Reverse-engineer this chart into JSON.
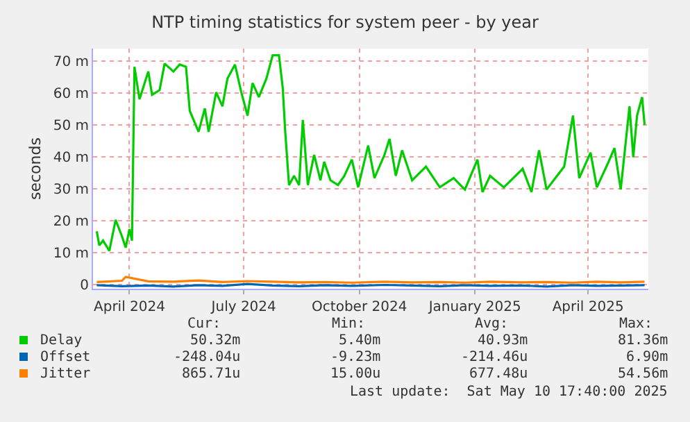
{
  "chart_data": {
    "type": "line",
    "title": "NTP timing statistics for system peer - by year",
    "ylabel": "seconds",
    "xlim": [
      "2024-03-03",
      "2025-05-19"
    ],
    "xticks": [
      {
        "value": "2024-04-01",
        "label": "April 2024"
      },
      {
        "value": "2024-07-01",
        "label": "July 2024"
      },
      {
        "value": "2024-10-01",
        "label": "October 2024"
      },
      {
        "value": "2025-01-01",
        "label": "January 2025"
      },
      {
        "value": "2025-04-01",
        "label": "April 2025"
      }
    ],
    "ylim": [
      -1.3,
      74
    ],
    "yticks": [
      0,
      {
        "value": 10,
        "label": "10 m"
      },
      {
        "value": 20,
        "label": "20 m"
      },
      {
        "value": 30,
        "label": "30 m"
      },
      {
        "value": 40,
        "label": "40 m"
      },
      {
        "value": 50,
        "label": "50 m"
      },
      {
        "value": 60,
        "label": "60 m"
      },
      {
        "value": 70,
        "label": "70 m"
      }
    ],
    "grid": true,
    "legend": "bottom",
    "marker": "none",
    "line_style": "solid",
    "series": [
      {
        "name": "Delay",
        "color": "#00cc00",
        "x": [
          "2024-03-06",
          "2024-03-08",
          "2024-03-11",
          "2024-03-16",
          "2024-03-21",
          "2024-03-26",
          "2024-03-29",
          "2024-04-01",
          "2024-04-03",
          "2024-04-05",
          "2024-04-09",
          "2024-04-16",
          "2024-04-19",
          "2024-04-25",
          "2024-04-29",
          "2024-05-06",
          "2024-05-11",
          "2024-05-16",
          "2024-05-19",
          "2024-05-26",
          "2024-05-31",
          "2024-06-03",
          "2024-06-09",
          "2024-06-14",
          "2024-06-18",
          "2024-06-24",
          "2024-06-29",
          "2024-07-04",
          "2024-07-08",
          "2024-07-13",
          "2024-07-19",
          "2024-07-24",
          "2024-07-29",
          "2024-08-01",
          "2024-08-03",
          "2024-08-06",
          "2024-08-10",
          "2024-08-14",
          "2024-08-17",
          "2024-08-21",
          "2024-08-26",
          "2024-08-31",
          "2024-09-03",
          "2024-09-08",
          "2024-09-14",
          "2024-09-19",
          "2024-09-25",
          "2024-09-30",
          "2024-10-08",
          "2024-10-13",
          "2024-10-21",
          "2024-10-25",
          "2024-10-30",
          "2024-11-04",
          "2024-11-12",
          "2024-11-23",
          "2024-12-04",
          "2024-12-15",
          "2024-12-24",
          "2025-01-03",
          "2025-01-07",
          "2025-01-13",
          "2025-01-24",
          "2025-02-08",
          "2025-02-15",
          "2025-02-21",
          "2025-02-27",
          "2025-03-06",
          "2025-03-13",
          "2025-03-20",
          "2025-03-25",
          "2025-04-03",
          "2025-04-08",
          "2025-04-17",
          "2025-04-22",
          "2025-04-27",
          "2025-05-04",
          "2025-05-07",
          "2025-05-10",
          "2025-05-14",
          "2025-05-16"
        ],
        "values": [
          16.7,
          12.3,
          13.8,
          10.6,
          20.3,
          15.2,
          11.6,
          17.4,
          13.8,
          68.3,
          58.1,
          66.8,
          59.5,
          61,
          69.3,
          66.8,
          69,
          68.3,
          54.5,
          47.9,
          55.2,
          47.9,
          60.3,
          55.9,
          64.6,
          69,
          60.3,
          53,
          63.2,
          58.8,
          64.6,
          71.9,
          71.9,
          61.7,
          47.9,
          31.2,
          34.1,
          31.2,
          51.6,
          31.2,
          40.7,
          32.7,
          38.5,
          32.7,
          31.2,
          34.1,
          39.2,
          30.5,
          43.6,
          33.4,
          40.7,
          45.7,
          34.1,
          42.1,
          32.7,
          37,
          30.5,
          33.4,
          29.8,
          39.2,
          29,
          34.1,
          30.5,
          36.3,
          29,
          42.1,
          29.8,
          33.4,
          37,
          53,
          33.4,
          41.4,
          30.5,
          38.2,
          42.8,
          29.8,
          55.9,
          39.9,
          53,
          58.8,
          50.1
        ]
      },
      {
        "name": "Offset",
        "color": "#0066b3",
        "x": [
          "2024-03-06",
          "2024-03-26",
          "2024-04-16",
          "2024-05-06",
          "2024-05-26",
          "2024-06-14",
          "2024-07-04",
          "2024-07-24",
          "2024-08-14",
          "2024-09-03",
          "2024-09-25",
          "2024-10-21",
          "2024-11-12",
          "2024-12-04",
          "2024-12-24",
          "2025-01-13",
          "2025-02-08",
          "2025-02-27",
          "2025-03-20",
          "2025-04-08",
          "2025-04-27",
          "2025-05-16"
        ],
        "values": [
          -0.2,
          -0.5,
          -0.3,
          -0.6,
          -0.2,
          -0.4,
          0.2,
          -0.3,
          -0.5,
          -0.2,
          -0.4,
          -0.1,
          -0.3,
          -0.5,
          -0.2,
          -0.4,
          -0.3,
          -0.6,
          -0.2,
          -0.4,
          -0.3,
          -0.2
        ]
      },
      {
        "name": "Jitter",
        "color": "#ff8000",
        "x": [
          "2024-03-06",
          "2024-03-26",
          "2024-03-29",
          "2024-04-16",
          "2024-05-06",
          "2024-05-26",
          "2024-06-14",
          "2024-07-04",
          "2024-07-24",
          "2024-08-14",
          "2024-09-03",
          "2024-09-25",
          "2024-10-21",
          "2024-11-12",
          "2024-12-04",
          "2024-12-24",
          "2025-01-13",
          "2025-02-08",
          "2025-02-27",
          "2025-03-20",
          "2025-04-08",
          "2025-04-27",
          "2025-05-16"
        ],
        "values": [
          0.8,
          1.2,
          2.4,
          1,
          0.9,
          1.3,
          0.8,
          1.1,
          0.9,
          0.7,
          0.8,
          0.6,
          0.9,
          0.7,
          0.8,
          0.6,
          0.9,
          0.7,
          0.8,
          0.6,
          0.9,
          0.7,
          0.9
        ]
      }
    ],
    "annotations": [
      "Cur:",
      "Min:",
      "Avg:",
      "Max:",
      "50.32m",
      "5.40m",
      "40.93m",
      "81.36m",
      "-248.04u",
      "-9.23m",
      "-214.46u",
      "6.90m",
      "865.71u",
      "15.00u",
      "677.48u",
      "54.56m",
      "Last update:  Sat May 10 17:40:00 2025"
    ]
  }
}
